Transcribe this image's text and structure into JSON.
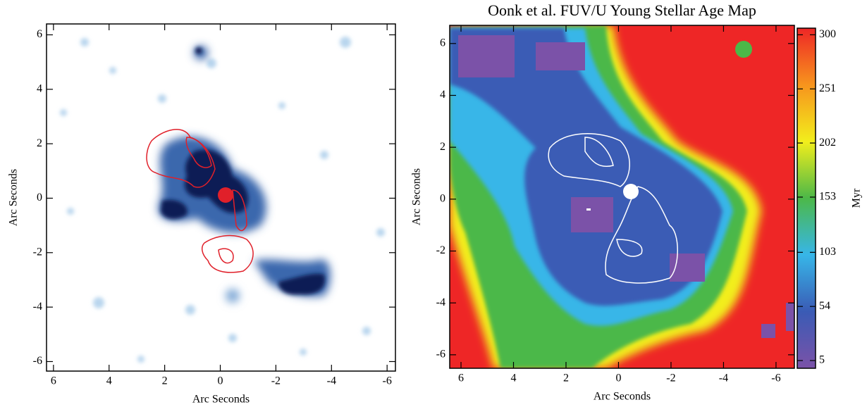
{
  "chart_data": [
    {
      "type": "image",
      "xlabel": "Arc Seconds",
      "ylabel": "Arc Seconds",
      "xlim": [
        6.25,
        -6.3
      ],
      "ylim": [
        -6.35,
        6.4
      ],
      "xticks": [
        6,
        4,
        2,
        0,
        -2,
        -4,
        -6
      ],
      "yticks": [
        -6,
        -4,
        -2,
        0,
        2,
        4,
        6
      ]
    },
    {
      "type": "image",
      "title": "Oonk et al. FUV/U Young Stellar Age Map",
      "xlabel": "Arc Seconds",
      "ylabel": "Arc Seconds",
      "xlim": [
        6.43,
        -6.7
      ],
      "ylim": [
        -6.52,
        6.7
      ],
      "xticks": [
        6,
        4,
        2,
        0,
        -2,
        -4,
        -6
      ],
      "yticks": [
        -6,
        -4,
        -2,
        0,
        2,
        4,
        6
      ],
      "colorbar": {
        "label": "Myr",
        "lim": [
          -2,
          306
        ],
        "ticks": [
          5,
          54,
          103,
          153,
          202,
          251,
          300
        ],
        "colors": [
          "#7b52a8",
          "#3a5bb5",
          "#37b6e8",
          "#4cb848",
          "#f2ee1c",
          "#f7941d",
          "#ee2626"
        ]
      }
    }
  ]
}
